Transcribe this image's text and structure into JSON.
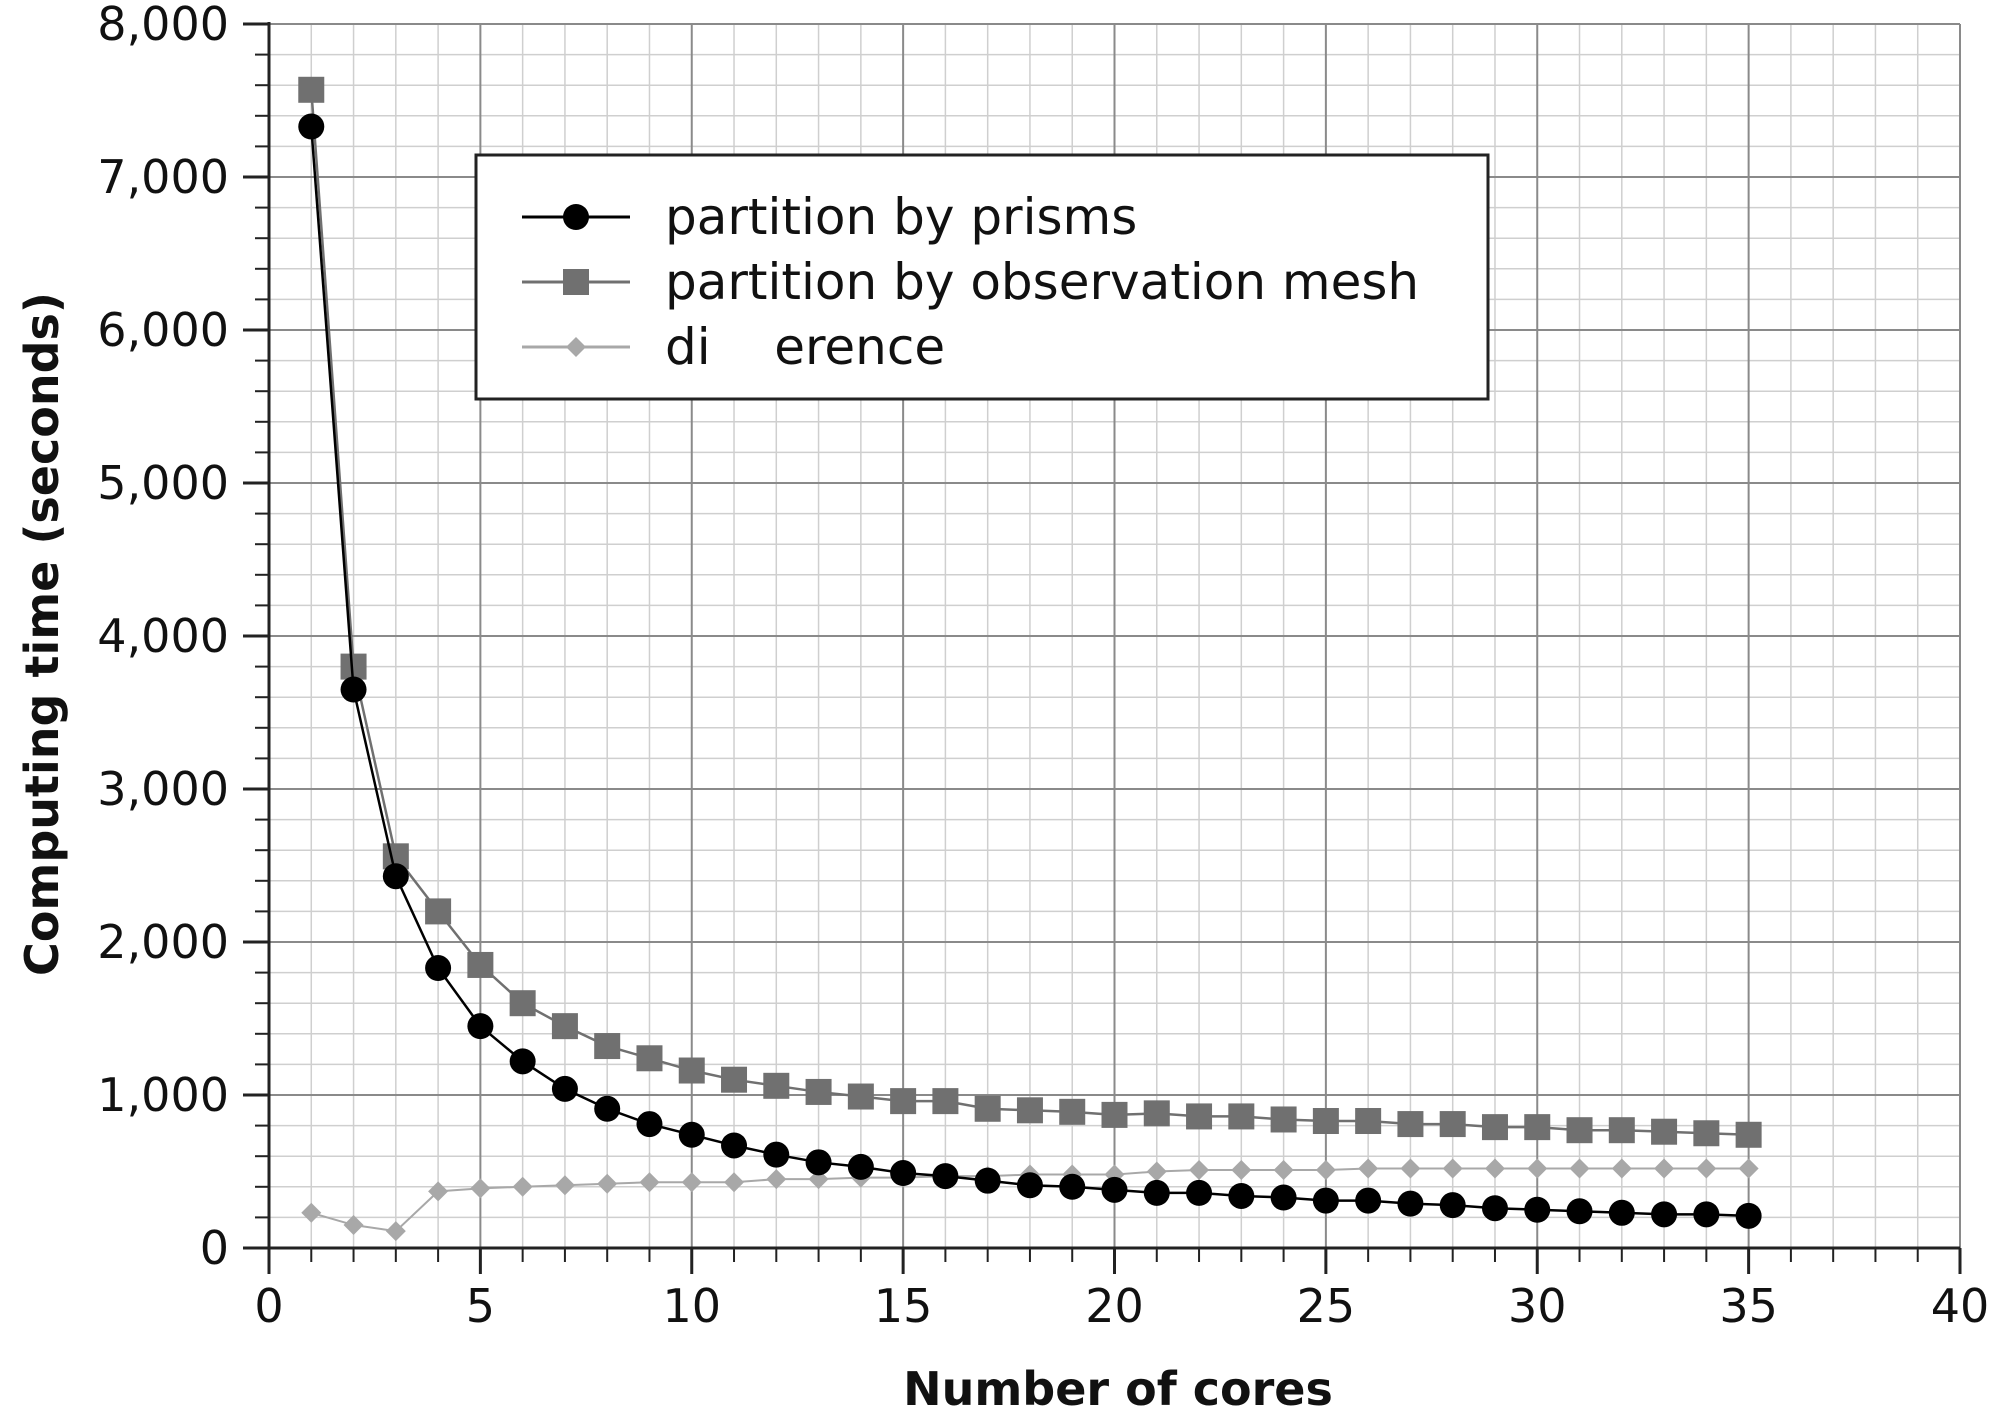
{
  "chart_data": {
    "type": "line",
    "title": "",
    "xlabel": "Number of cores",
    "ylabel": "Computing time (seconds)",
    "xlim": [
      0,
      40
    ],
    "ylim": [
      0,
      8000
    ],
    "xticks": [
      0,
      5,
      10,
      15,
      20,
      25,
      30,
      35,
      40
    ],
    "xtick_labels": [
      "0",
      "5",
      "10",
      "15",
      "20",
      "25",
      "30",
      "35",
      "40"
    ],
    "yticks": [
      0,
      1000,
      2000,
      3000,
      4000,
      5000,
      6000,
      7000,
      8000
    ],
    "ytick_labels": [
      "0",
      "1,000",
      "2,000",
      "3,000",
      "4,000",
      "5,000",
      "6,000",
      "7,000",
      "8,000"
    ],
    "grid": true,
    "legend_position": "top-center",
    "x": [
      1,
      2,
      3,
      4,
      5,
      6,
      7,
      8,
      9,
      10,
      11,
      12,
      13,
      14,
      15,
      16,
      17,
      18,
      19,
      20,
      21,
      22,
      23,
      24,
      25,
      26,
      27,
      28,
      29,
      30,
      31,
      32,
      33,
      34,
      35
    ],
    "series": [
      {
        "name": "partition by prisms",
        "marker": "circle",
        "color": "#000000",
        "values": [
          7330,
          3650,
          2430,
          1830,
          1450,
          1220,
          1040,
          910,
          810,
          740,
          670,
          610,
          560,
          530,
          490,
          470,
          440,
          410,
          400,
          380,
          360,
          360,
          340,
          330,
          310,
          310,
          290,
          280,
          260,
          250,
          240,
          230,
          220,
          220,
          210
        ]
      },
      {
        "name": "partition by observation mesh",
        "marker": "square",
        "color": "#707070",
        "values": [
          7570,
          3800,
          2560,
          2200,
          1850,
          1600,
          1450,
          1320,
          1240,
          1160,
          1100,
          1060,
          1020,
          990,
          960,
          960,
          910,
          900,
          890,
          870,
          880,
          860,
          860,
          840,
          830,
          830,
          810,
          810,
          790,
          790,
          770,
          770,
          760,
          750,
          740
        ]
      },
      {
        "name": "di    erence",
        "marker": "diamond",
        "color": "#a8a8a8",
        "values": [
          230,
          150,
          110,
          370,
          390,
          400,
          410,
          420,
          430,
          430,
          430,
          450,
          450,
          460,
          460,
          470,
          470,
          480,
          480,
          480,
          500,
          510,
          510,
          510,
          510,
          520,
          520,
          520,
          520,
          520,
          520,
          520,
          520,
          520,
          520
        ]
      }
    ]
  }
}
